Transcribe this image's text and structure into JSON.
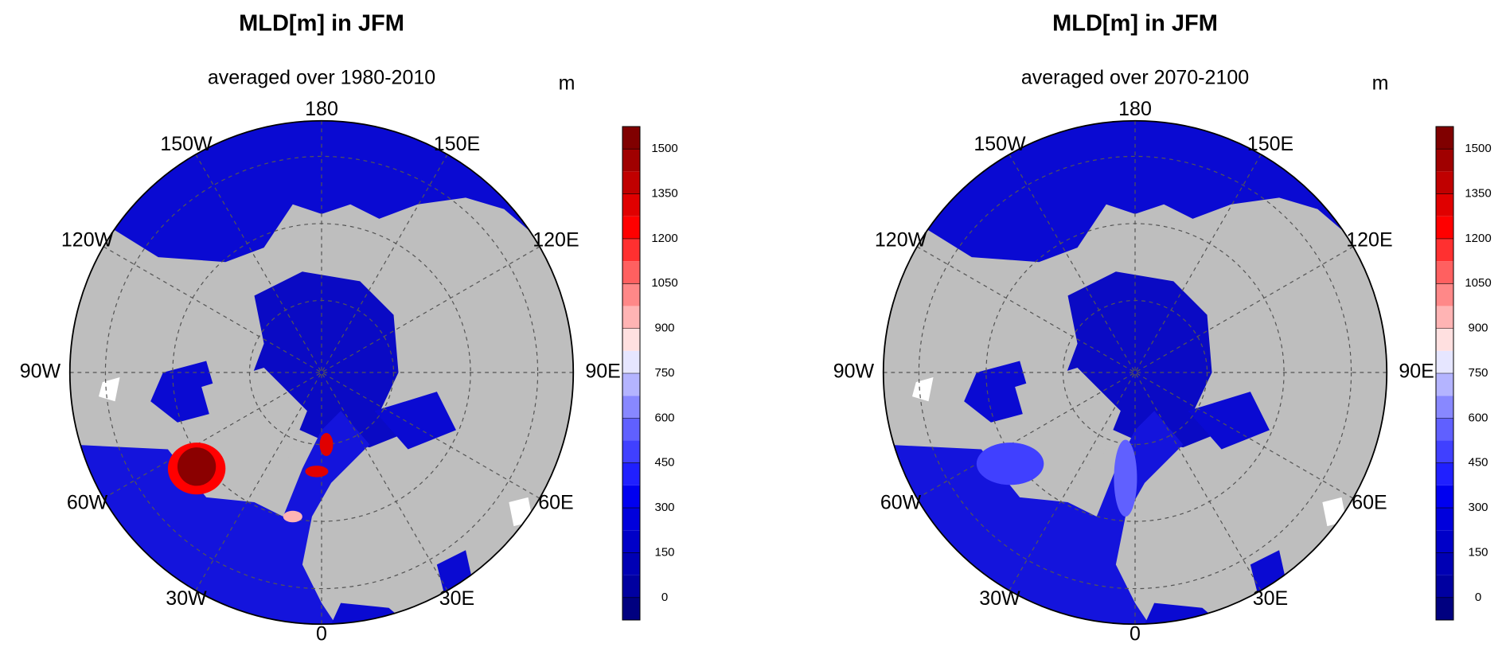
{
  "panels": [
    {
      "title": "MLD[m] in JFM",
      "subtitle": "averaged over 1980-2010",
      "unit": "m",
      "lon_labels": [
        "180",
        "150E",
        "120E",
        "90E",
        "60E",
        "30E",
        "0",
        "30W",
        "60W",
        "90W",
        "120W",
        "150W"
      ]
    },
    {
      "title": "MLD[m] in JFM",
      "subtitle": "averaged over 2070-2100",
      "unit": "m",
      "lon_labels": [
        "180",
        "150E",
        "120E",
        "90E",
        "60E",
        "30E",
        "0",
        "30W",
        "60W",
        "90W",
        "120W",
        "150W"
      ]
    }
  ],
  "colorbar": {
    "lim": [
      -75,
      1575
    ],
    "ticks": [
      0,
      150,
      300,
      450,
      600,
      750,
      900,
      1050,
      1200,
      1350,
      1500
    ],
    "colors": [
      "#000080",
      "#0000a0",
      "#0000b4",
      "#0000c8",
      "#0000dc",
      "#0000f0",
      "#2020ff",
      "#4040ff",
      "#6060ff",
      "#8888ff",
      "#b4b4ff",
      "#e6e6ff",
      "#ffe0e0",
      "#ffb4b4",
      "#ff8888",
      "#ff6060",
      "#ff3030",
      "#ff0000",
      "#e00000",
      "#c00000",
      "#a00000",
      "#800000"
    ]
  }
}
